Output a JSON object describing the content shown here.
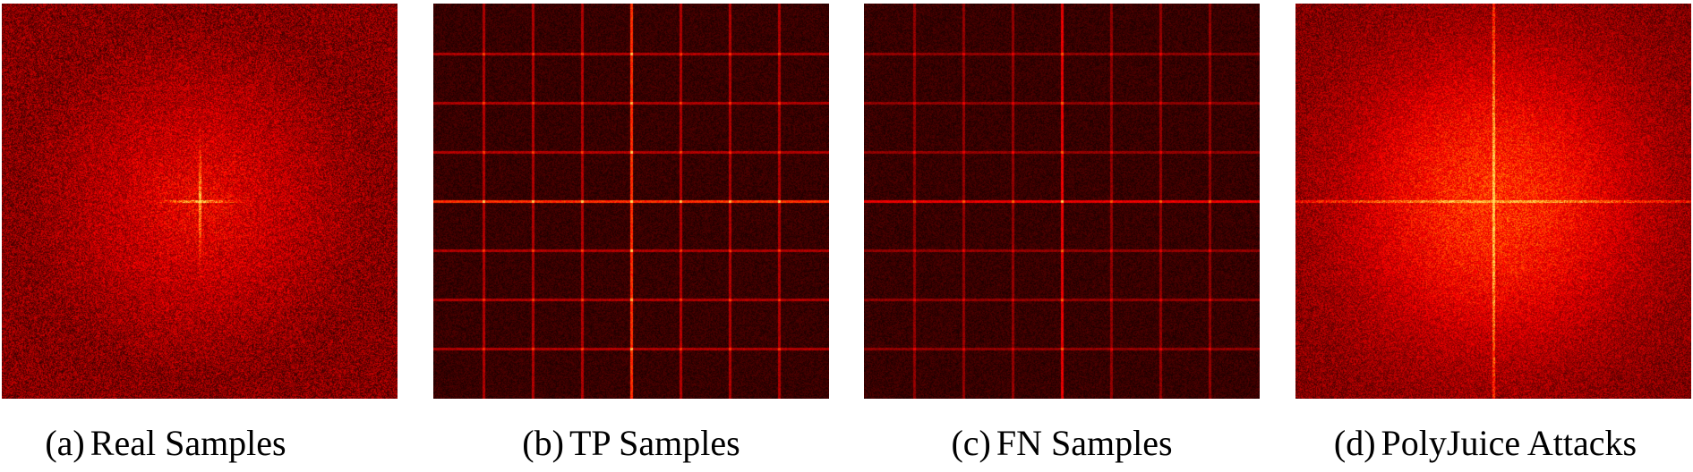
{
  "figure": {
    "panels": [
      {
        "label": "(a)",
        "caption": "Real Samples",
        "style": "real"
      },
      {
        "label": "(b)",
        "caption": "TP Samples",
        "style": "grid"
      },
      {
        "label": "(c)",
        "caption": "FN Samples",
        "style": "grid-faint"
      },
      {
        "label": "(d)",
        "caption": "PolyJuice Attacks",
        "style": "diffuse"
      }
    ],
    "colormap": {
      "dark": "#000000",
      "mid": "#a00000",
      "bright": "#ff2020",
      "peak": "#ffd040"
    }
  }
}
